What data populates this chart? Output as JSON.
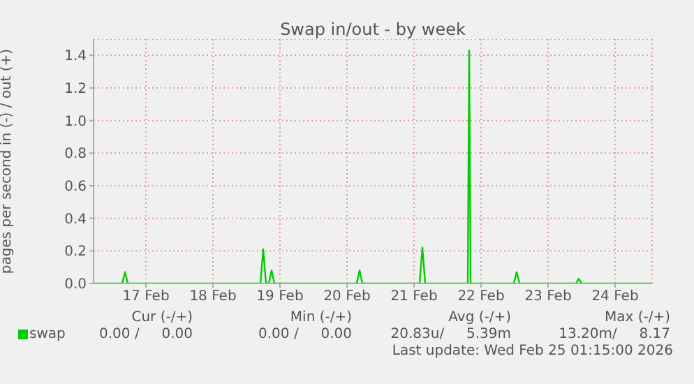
{
  "chart_data": {
    "type": "line",
    "title": "Swap in/out - by week",
    "ylabel": "pages per second in (-) / out (+)",
    "x": [
      "2026-02-16T17:15",
      "2026-02-17T03:30",
      "2026-02-17T04:30",
      "2026-02-17T05:30",
      "2026-02-19T05:00",
      "2026-02-19T06:00",
      "2026-02-19T07:00",
      "2026-02-19T08:00",
      "2026-02-19T09:00",
      "2026-02-19T10:00",
      "2026-02-20T15:30",
      "2026-02-20T16:30",
      "2026-02-20T17:30",
      "2026-02-21T14:00",
      "2026-02-21T15:00",
      "2026-02-21T16:00",
      "2026-02-22T07:15",
      "2026-02-22T07:45",
      "2026-02-22T08:15",
      "2026-02-22T23:45",
      "2026-02-23T00:45",
      "2026-02-23T01:45",
      "2026-02-23T22:00",
      "2026-02-23T23:00",
      "2026-02-24T00:00",
      "2026-02-25T01:15"
    ],
    "series": [
      {
        "name": "swap",
        "color": "#00cc00",
        "values": [
          0,
          0,
          0.07,
          0,
          0,
          0.21,
          0,
          0,
          0.08,
          0,
          0,
          0.08,
          0,
          0,
          0.22,
          0,
          0,
          1.43,
          0,
          0,
          0.07,
          0,
          0,
          0.03,
          0,
          0
        ]
      }
    ],
    "xlim": [
      "2026-02-16T17:15",
      "2026-02-25T01:15"
    ],
    "xticks": [
      {
        "value": "2026-02-17T12:00",
        "label": "17 Feb"
      },
      {
        "value": "2026-02-18T12:00",
        "label": "18 Feb"
      },
      {
        "value": "2026-02-19T12:00",
        "label": "19 Feb"
      },
      {
        "value": "2026-02-20T12:00",
        "label": "20 Feb"
      },
      {
        "value": "2026-02-21T12:00",
        "label": "21 Feb"
      },
      {
        "value": "2026-02-22T12:00",
        "label": "22 Feb"
      },
      {
        "value": "2026-02-23T12:00",
        "label": "23 Feb"
      },
      {
        "value": "2026-02-24T12:00",
        "label": "24 Feb"
      }
    ],
    "ylim": [
      0,
      1.5
    ],
    "yticks": [
      {
        "value": 0,
        "label": "0.0"
      },
      {
        "value": 0.2,
        "label": "0.2"
      },
      {
        "value": 0.4,
        "label": "0.4"
      },
      {
        "value": 0.6,
        "label": "0.6"
      },
      {
        "value": 0.8,
        "label": "0.8"
      },
      {
        "value": 1,
        "label": "1.0"
      },
      {
        "value": 1.2,
        "label": "1.2"
      },
      {
        "value": 1.4,
        "label": "1.4"
      }
    ],
    "grid": true,
    "legend": "bottom left",
    "marker": "none",
    "line_style": "solid",
    "annotations": [
      "Cur (-/+)",
      "Min (-/+)",
      "Avg (-/+)",
      "Max (-/+)",
      "0.00 /     0.00",
      "0.00 /     0.00",
      "20.83u/     5.39m",
      "13.20m/     8.17",
      "Last update: Wed Feb 25 01:15:00 2026"
    ]
  }
}
